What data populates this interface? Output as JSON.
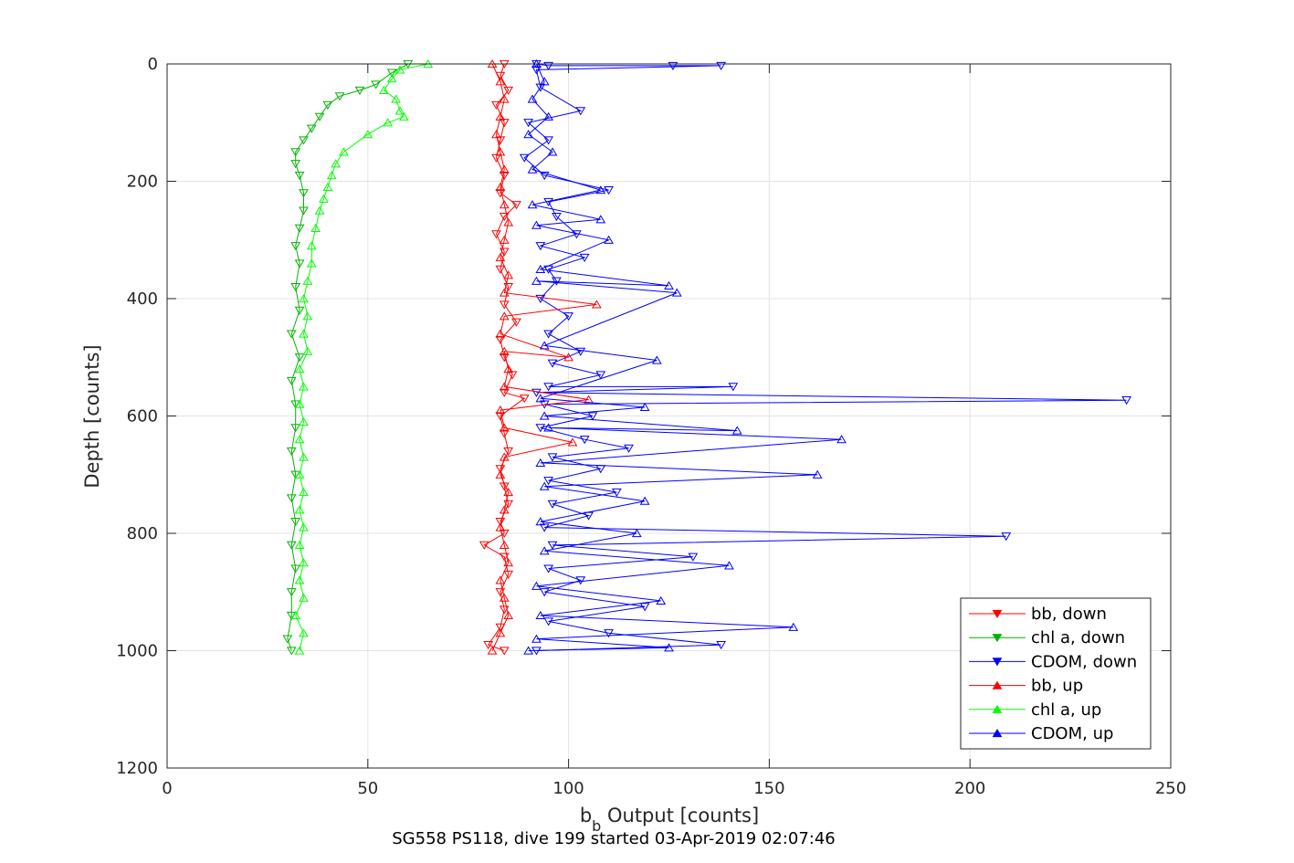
{
  "chart_data": {
    "type": "line",
    "title": "",
    "caption": "SG558 PS118, dive 199 started 03-Apr-2019 02:07:46",
    "xlabel_base": "b",
    "xlabel_sub": "b",
    "xlabel_rest": " Output [counts]",
    "ylabel": "Depth [counts]",
    "xlim": [
      0,
      250
    ],
    "ylim": [
      0,
      1200
    ],
    "y_reversed": true,
    "grid": true,
    "legend_position": "bottom-right",
    "x_ticks": [
      "0",
      "50",
      "100",
      "150",
      "200",
      "250"
    ],
    "y_ticks": [
      "0",
      "200",
      "400",
      "600",
      "800",
      "1000",
      "1200"
    ],
    "series": [
      {
        "name": "bb, down",
        "color": "#ff0000",
        "marker": "triangle-down",
        "points": [
          [
            84,
            0
          ],
          [
            83,
            20
          ],
          [
            85,
            45
          ],
          [
            82,
            70
          ],
          [
            84,
            100
          ],
          [
            83,
            130
          ],
          [
            82,
            160
          ],
          [
            84,
            190
          ],
          [
            83,
            220
          ],
          [
            87,
            240
          ],
          [
            84,
            260
          ],
          [
            82,
            290
          ],
          [
            84,
            320
          ],
          [
            83,
            350
          ],
          [
            85,
            380
          ],
          [
            84,
            410
          ],
          [
            87,
            440
          ],
          [
            83,
            470
          ],
          [
            84,
            500
          ],
          [
            86,
            530
          ],
          [
            84,
            560
          ],
          [
            89,
            570
          ],
          [
            83,
            600
          ],
          [
            84,
            630
          ],
          [
            85,
            660
          ],
          [
            83,
            690
          ],
          [
            84,
            720
          ],
          [
            85,
            750
          ],
          [
            83,
            780
          ],
          [
            84,
            800
          ],
          [
            79,
            820
          ],
          [
            84,
            840
          ],
          [
            85,
            870
          ],
          [
            83,
            900
          ],
          [
            84,
            930
          ],
          [
            83,
            960
          ],
          [
            80,
            990
          ],
          [
            84,
            1000
          ]
        ]
      },
      {
        "name": "chl a, down",
        "color": "#00b400",
        "marker": "triangle-down",
        "points": [
          [
            60,
            0
          ],
          [
            56,
            15
          ],
          [
            52,
            35
          ],
          [
            48,
            45
          ],
          [
            43,
            55
          ],
          [
            40,
            70
          ],
          [
            38,
            90
          ],
          [
            36,
            110
          ],
          [
            34,
            130
          ],
          [
            32,
            150
          ],
          [
            32,
            170
          ],
          [
            33,
            190
          ],
          [
            34,
            220
          ],
          [
            34,
            250
          ],
          [
            33,
            280
          ],
          [
            32,
            310
          ],
          [
            33,
            340
          ],
          [
            32,
            380
          ],
          [
            33,
            420
          ],
          [
            31,
            460
          ],
          [
            33,
            500
          ],
          [
            31,
            540
          ],
          [
            32,
            580
          ],
          [
            32,
            620
          ],
          [
            31,
            660
          ],
          [
            32,
            700
          ],
          [
            31,
            740
          ],
          [
            32,
            780
          ],
          [
            31,
            820
          ],
          [
            32,
            860
          ],
          [
            31,
            900
          ],
          [
            31,
            940
          ],
          [
            30,
            980
          ],
          [
            31,
            1000
          ]
        ]
      },
      {
        "name": "CDOM, down",
        "color": "#0000ff",
        "marker": "triangle-down",
        "points": [
          [
            92,
            0
          ],
          [
            95,
            3
          ],
          [
            126,
            3
          ],
          [
            138,
            3
          ],
          [
            92,
            10
          ],
          [
            93,
            40
          ],
          [
            103,
            80
          ],
          [
            90,
            100
          ],
          [
            95,
            130
          ],
          [
            89,
            160
          ],
          [
            94,
            190
          ],
          [
            110,
            215
          ],
          [
            95,
            235
          ],
          [
            97,
            260
          ],
          [
            102,
            290
          ],
          [
            93,
            310
          ],
          [
            104,
            330
          ],
          [
            95,
            350
          ],
          [
            97,
            370
          ],
          [
            93,
            400
          ],
          [
            100,
            430
          ],
          [
            95,
            460
          ],
          [
            103,
            490
          ],
          [
            96,
            510
          ],
          [
            108,
            530
          ],
          [
            95,
            550
          ],
          [
            141,
            550
          ],
          [
            92,
            560
          ],
          [
            239,
            573
          ],
          [
            94,
            580
          ],
          [
            106,
            600
          ],
          [
            93,
            620
          ],
          [
            104,
            640
          ],
          [
            115,
            655
          ],
          [
            96,
            670
          ],
          [
            108,
            690
          ],
          [
            95,
            710
          ],
          [
            112,
            730
          ],
          [
            96,
            750
          ],
          [
            105,
            770
          ],
          [
            94,
            790
          ],
          [
            209,
            805
          ],
          [
            96,
            820
          ],
          [
            131,
            840
          ],
          [
            95,
            860
          ],
          [
            103,
            880
          ],
          [
            94,
            900
          ],
          [
            119,
            925
          ],
          [
            95,
            950
          ],
          [
            110,
            970
          ],
          [
            138,
            990
          ],
          [
            92,
            1000
          ]
        ]
      },
      {
        "name": "bb, up",
        "color": "#ff0000",
        "marker": "triangle-up",
        "points": [
          [
            81,
            1000
          ],
          [
            83,
            970
          ],
          [
            85,
            940
          ],
          [
            84,
            910
          ],
          [
            83,
            880
          ],
          [
            85,
            850
          ],
          [
            84,
            820
          ],
          [
            83,
            790
          ],
          [
            84,
            760
          ],
          [
            85,
            730
          ],
          [
            83,
            700
          ],
          [
            84,
            670
          ],
          [
            101,
            645
          ],
          [
            84,
            620
          ],
          [
            83,
            590
          ],
          [
            105,
            572
          ],
          [
            84,
            550
          ],
          [
            85,
            520
          ],
          [
            84,
            490
          ],
          [
            100,
            500
          ],
          [
            83,
            460
          ],
          [
            84,
            430
          ],
          [
            107,
            410
          ],
          [
            84,
            390
          ],
          [
            85,
            360
          ],
          [
            83,
            330
          ],
          [
            84,
            300
          ],
          [
            85,
            270
          ],
          [
            84,
            240
          ],
          [
            83,
            210
          ],
          [
            84,
            180
          ],
          [
            83,
            150
          ],
          [
            82,
            120
          ],
          [
            83,
            90
          ],
          [
            84,
            60
          ],
          [
            83,
            30
          ],
          [
            81,
            0
          ]
        ]
      },
      {
        "name": "chl a, up",
        "color": "#00ff00",
        "marker": "triangle-up",
        "points": [
          [
            33,
            1000
          ],
          [
            34,
            970
          ],
          [
            32,
            940
          ],
          [
            34,
            910
          ],
          [
            33,
            880
          ],
          [
            34,
            850
          ],
          [
            33,
            820
          ],
          [
            34,
            790
          ],
          [
            33,
            760
          ],
          [
            34,
            730
          ],
          [
            33,
            700
          ],
          [
            34,
            670
          ],
          [
            33,
            640
          ],
          [
            34,
            610
          ],
          [
            33,
            580
          ],
          [
            34,
            550
          ],
          [
            33,
            520
          ],
          [
            35,
            490
          ],
          [
            34,
            460
          ],
          [
            35,
            430
          ],
          [
            34,
            400
          ],
          [
            35,
            370
          ],
          [
            36,
            340
          ],
          [
            36,
            310
          ],
          [
            37,
            280
          ],
          [
            38,
            250
          ],
          [
            39,
            230
          ],
          [
            40,
            210
          ],
          [
            41,
            190
          ],
          [
            42,
            170
          ],
          [
            44,
            150
          ],
          [
            50,
            120
          ],
          [
            55,
            100
          ],
          [
            59,
            90
          ],
          [
            58,
            80
          ],
          [
            57,
            60
          ],
          [
            54,
            45
          ],
          [
            56,
            25
          ],
          [
            58,
            10
          ],
          [
            65,
            0
          ]
        ]
      },
      {
        "name": "CDOM, up",
        "color": "#0000ff",
        "marker": "triangle-up",
        "points": [
          [
            90,
            1000
          ],
          [
            125,
            995
          ],
          [
            92,
            980
          ],
          [
            156,
            960
          ],
          [
            93,
            940
          ],
          [
            123,
            915
          ],
          [
            92,
            890
          ],
          [
            140,
            855
          ],
          [
            94,
            830
          ],
          [
            117,
            800
          ],
          [
            93,
            780
          ],
          [
            119,
            745
          ],
          [
            94,
            720
          ],
          [
            162,
            700
          ],
          [
            93,
            680
          ],
          [
            168,
            640
          ],
          [
            95,
            620
          ],
          [
            142,
            625
          ],
          [
            94,
            600
          ],
          [
            119,
            585
          ],
          [
            93,
            570
          ],
          [
            122,
            505
          ],
          [
            94,
            480
          ],
          [
            127,
            390
          ],
          [
            92,
            370
          ],
          [
            125,
            378
          ],
          [
            93,
            350
          ],
          [
            110,
            300
          ],
          [
            92,
            275
          ],
          [
            108,
            265
          ],
          [
            91,
            240
          ],
          [
            108,
            215
          ],
          [
            91,
            180
          ],
          [
            96,
            150
          ],
          [
            90,
            120
          ],
          [
            95,
            90
          ],
          [
            91,
            60
          ],
          [
            94,
            30
          ],
          [
            92,
            0
          ]
        ]
      }
    ]
  }
}
